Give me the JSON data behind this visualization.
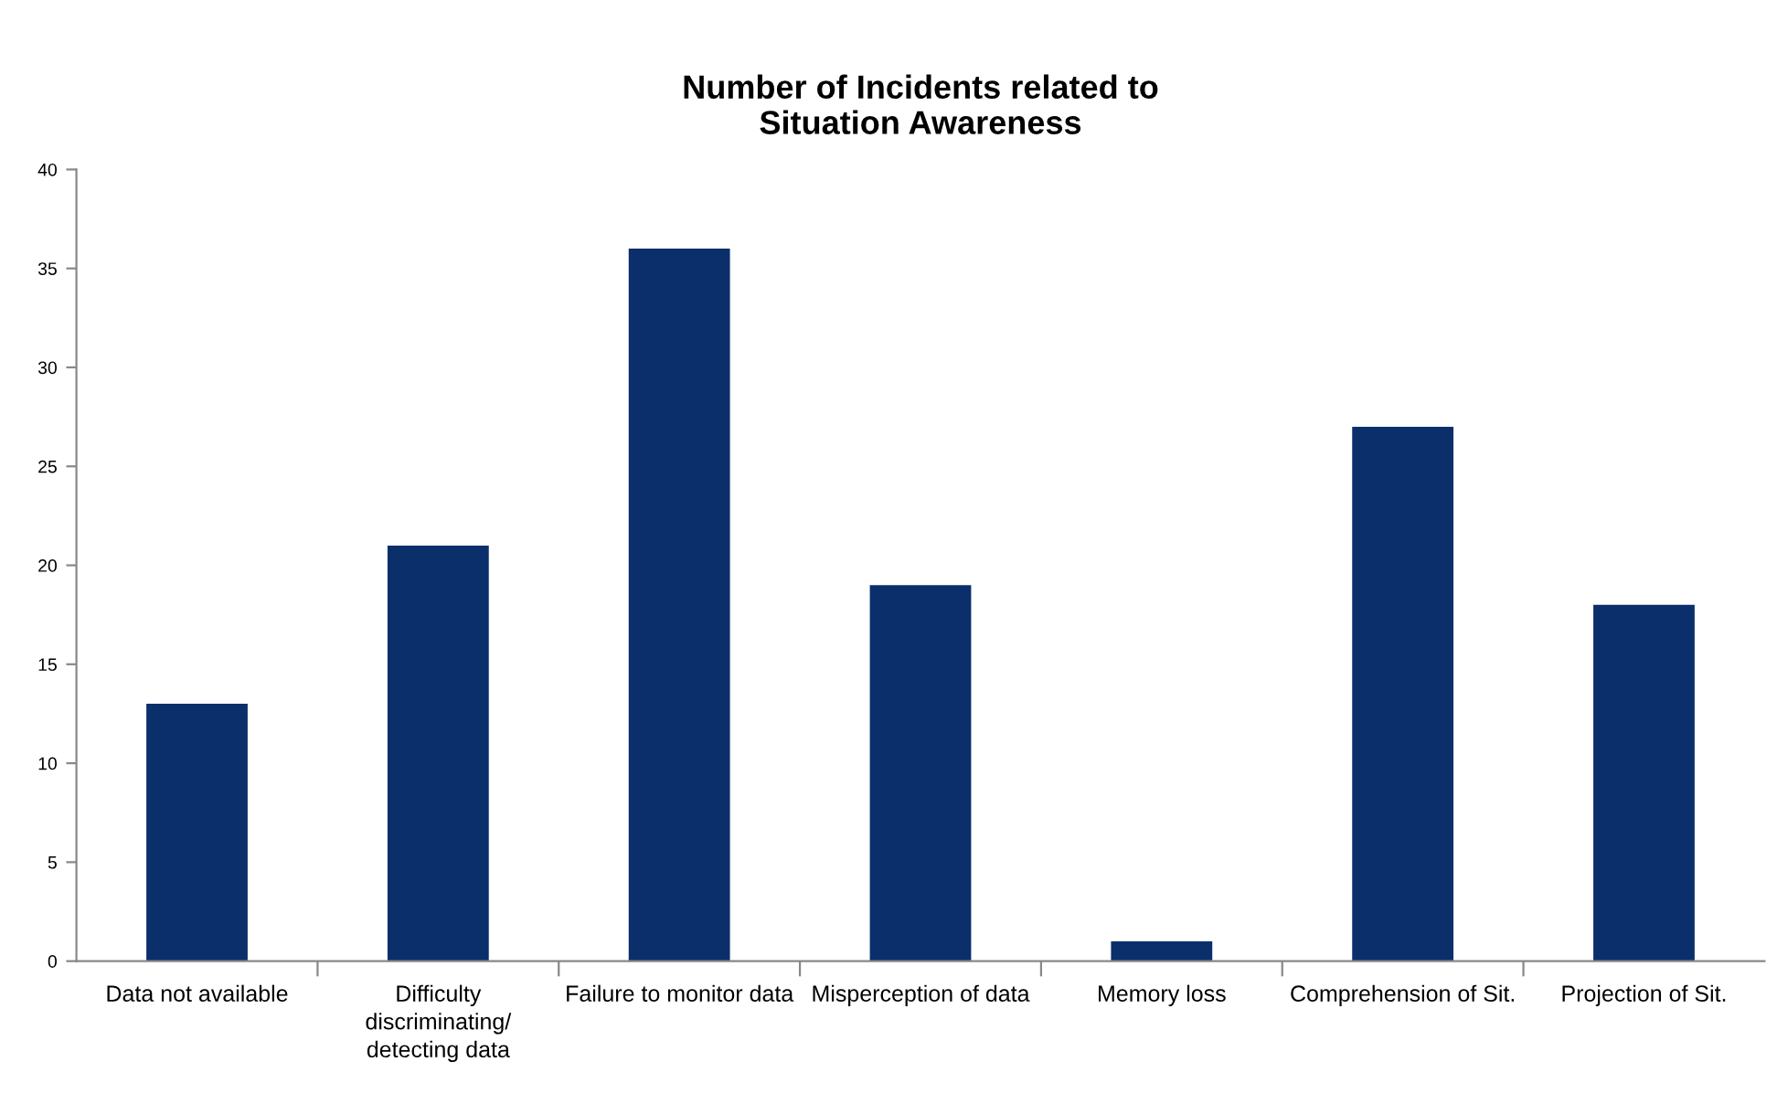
{
  "chart_data": {
    "type": "bar",
    "title": "Number of Incidents related to\nSituation Awareness",
    "categories": [
      "Data not available",
      "Difficulty discriminating/ detecting data",
      "Failure to monitor data",
      "Misperception of data",
      "Memory loss",
      "Comprehension of Sit.",
      "Projection of Sit."
    ],
    "values": [
      13,
      21,
      36,
      19,
      1,
      27,
      18
    ],
    "color": "#0b2f6b",
    "ylim": [
      0,
      40
    ],
    "yticks": [
      0,
      5,
      10,
      15,
      20,
      25,
      30,
      35,
      40
    ],
    "grid": false,
    "legend": false
  }
}
